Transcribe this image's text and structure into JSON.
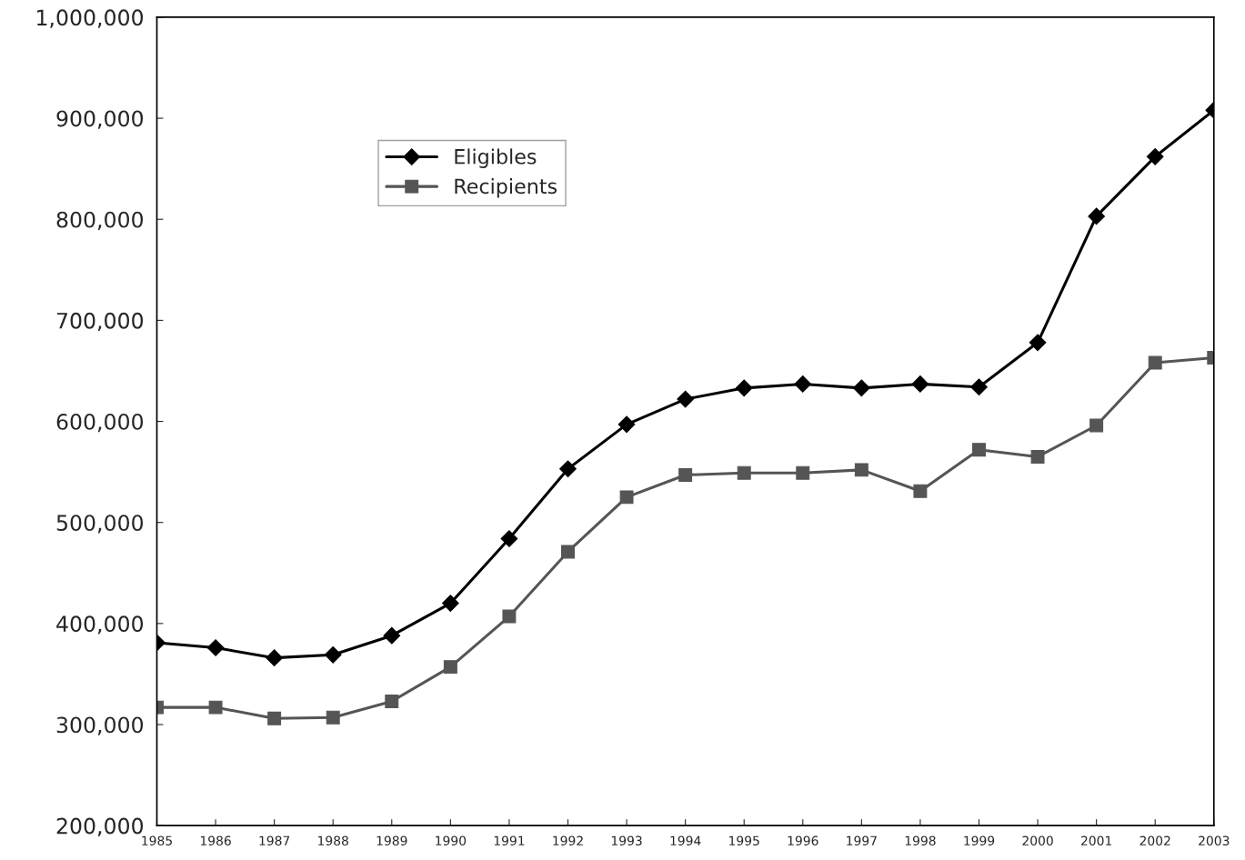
{
  "chart_data": {
    "type": "line",
    "x": [
      1985,
      1986,
      1987,
      1988,
      1989,
      1990,
      1991,
      1992,
      1993,
      1994,
      1995,
      1996,
      1997,
      1998,
      1999,
      2000,
      2001,
      2002,
      2003
    ],
    "series": [
      {
        "name": "Eligibles",
        "color": "#000000",
        "marker": "diamond",
        "values": [
          381000,
          376000,
          366000,
          369000,
          388000,
          420000,
          484000,
          553000,
          597000,
          622000,
          633000,
          637000,
          633000,
          637000,
          634000,
          678000,
          803000,
          862000,
          908000
        ]
      },
      {
        "name": "Recipients",
        "color": "#555555",
        "marker": "square",
        "values": [
          317000,
          317000,
          306000,
          307000,
          323000,
          357000,
          407000,
          471000,
          525000,
          547000,
          549000,
          549000,
          552000,
          531000,
          572000,
          565000,
          596000,
          658000,
          663000
        ]
      }
    ],
    "xlim": [
      1985,
      2003
    ],
    "xticks": [
      1985,
      1986,
      1987,
      1988,
      1989,
      1990,
      1991,
      1992,
      1993,
      1994,
      1995,
      1996,
      1997,
      1998,
      1999,
      2000,
      2001,
      2002,
      2003
    ],
    "ylim": [
      200000,
      1000000
    ],
    "yticks": [
      {
        "value": 200000,
        "label": "200,000"
      },
      {
        "value": 300000,
        "label": "300,000"
      },
      {
        "value": 400000,
        "label": "400,000"
      },
      {
        "value": 500000,
        "label": "500,000"
      },
      {
        "value": 600000,
        "label": "600,000"
      },
      {
        "value": 700000,
        "label": "700,000"
      },
      {
        "value": 800000,
        "label": "800,000"
      },
      {
        "value": 900000,
        "label": "900,000"
      },
      {
        "value": 1000000,
        "label": "1,000,000"
      }
    ],
    "grid": false,
    "legend": "top left",
    "line_style": "solid"
  }
}
